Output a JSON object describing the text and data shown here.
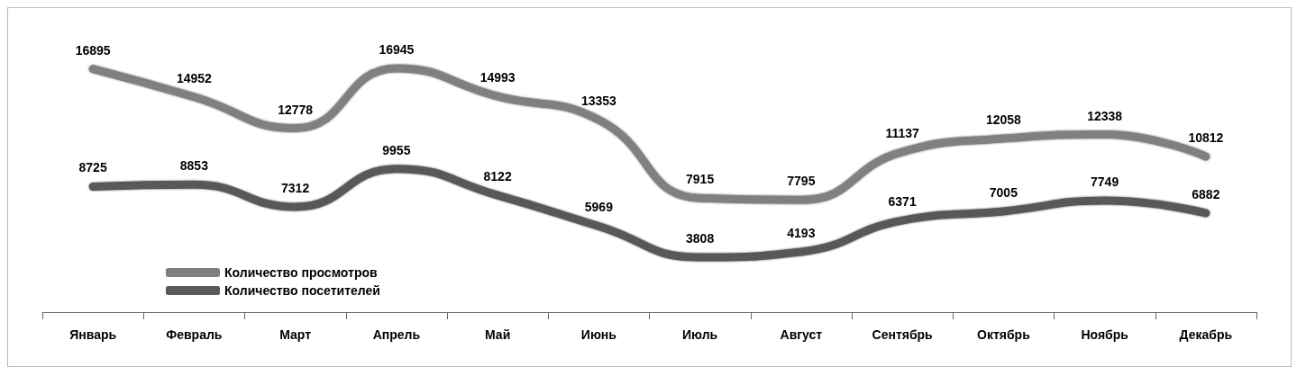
{
  "chart_data": {
    "type": "line",
    "categories": [
      "Январь",
      "Февраль",
      "Март",
      "Апрель",
      "Май",
      "Июнь",
      "Июль",
      "Август",
      "Сентябрь",
      "Октябрь",
      "Ноябрь",
      "Декабрь"
    ],
    "series": [
      {
        "name": "Количество просмотров",
        "color": "#808080",
        "values": [
          16895,
          14952,
          12778,
          16945,
          14993,
          13353,
          7915,
          7795,
          11137,
          12058,
          12338,
          10812
        ]
      },
      {
        "name": "Количество посетителей",
        "color": "#595959",
        "values": [
          8725,
          8853,
          7312,
          9955,
          8122,
          5969,
          3808,
          4193,
          6371,
          7005,
          7749,
          6882
        ]
      }
    ],
    "data_labels": true,
    "legend": "bottom left",
    "grid": false,
    "marker": "none",
    "line_style": "solid",
    "tick_labels": "x"
  }
}
